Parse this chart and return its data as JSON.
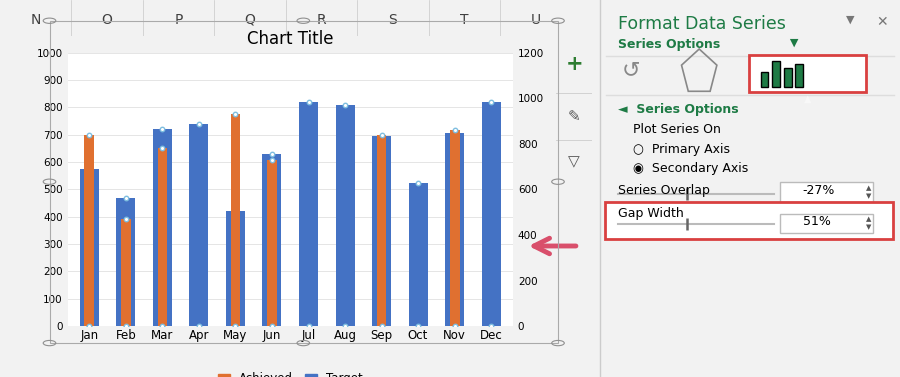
{
  "title": "Chart Title",
  "months": [
    "Jan",
    "Feb",
    "Mar",
    "Apr",
    "May",
    "Jun",
    "Jul",
    "Aug",
    "Sep",
    "Oct",
    "Nov",
    "Dec"
  ],
  "achieved": [
    840,
    470,
    780,
    0,
    930,
    730,
    0,
    0,
    840,
    0,
    860,
    0
  ],
  "target": [
    575,
    470,
    720,
    740,
    420,
    630,
    820,
    810,
    695,
    525,
    705,
    820
  ],
  "achieved_color": "#E07030",
  "target_color": "#4472C4",
  "left_ylim": [
    0,
    1000
  ],
  "right_ylim": [
    0,
    1200
  ],
  "left_yticks": [
    0,
    100,
    200,
    300,
    400,
    500,
    600,
    700,
    800,
    900,
    1000
  ],
  "right_yticks": [
    0,
    200,
    400,
    600,
    800,
    1000,
    1200
  ],
  "bg_color": "#F2F2F2",
  "chart_bg": "#FFFFFF",
  "grid_color": "#E0E0E0",
  "panel_bg": "#FFFFFF",
  "panel_title_color": "#1E7B45",
  "series_options_color": "#1E7B45",
  "arrow_color": "#D94F6B",
  "gap_width_text": "51%",
  "overlap_text": "-27%",
  "col_headers": [
    "N",
    "O",
    "P",
    "Q",
    "R",
    "S",
    "T",
    "U"
  ],
  "panel_title": "Format Data Series",
  "handle_color": "#7FBEE0",
  "highlight_red": "#D94040"
}
